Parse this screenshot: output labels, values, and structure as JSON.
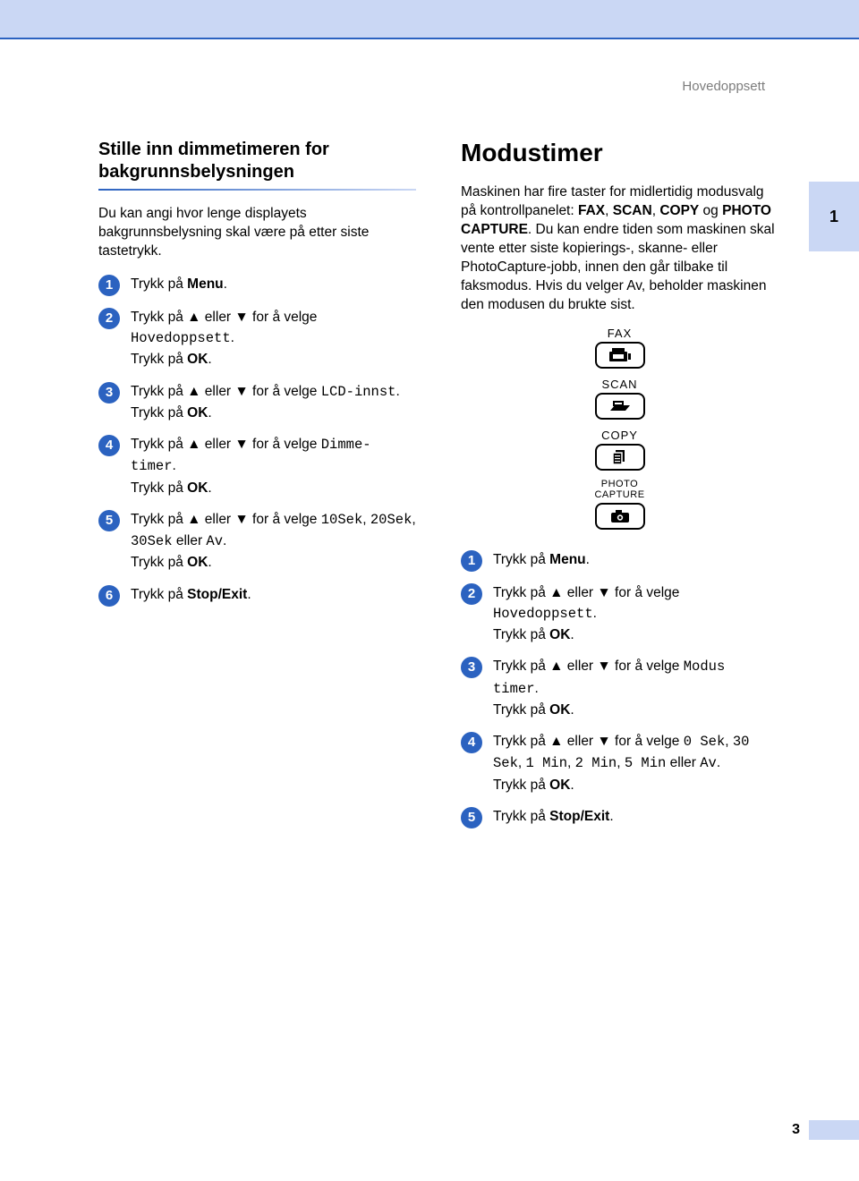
{
  "header": {
    "section": "Hovedoppsett"
  },
  "thumb": {
    "label": "1"
  },
  "page_number": "3",
  "colors": {
    "band": "#cad7f4",
    "accent": "#2b62c0",
    "header_text": "#7d7d7d"
  },
  "left": {
    "title": "Stille inn dimmetimeren for bakgrunnsbelysningen",
    "intro": "Du kan angi hvor lenge displayets bakgrunnsbelysning skal være på etter siste tastetrykk.",
    "steps": [
      {
        "n": "1",
        "html": "Trykk på <b>Menu</b>."
      },
      {
        "n": "2",
        "html": "Trykk på ▲ eller ▼ for å velge <span class=\"mono\">Hovedoppsett</span>.<br>Trykk på <b>OK</b>."
      },
      {
        "n": "3",
        "html": "Trykk på ▲ eller ▼ for å velge <span class=\"mono\">LCD-innst</span>.<br>Trykk på <b>OK</b>."
      },
      {
        "n": "4",
        "html": "Trykk på ▲ eller ▼ for å velge <span class=\"mono\">Dimme-timer</span>.<br>Trykk på <b>OK</b>."
      },
      {
        "n": "5",
        "html": "Trykk på ▲ eller ▼ for å velge <span class=\"mono\">10Sek</span>, <span class=\"mono\">20Sek</span>, <span class=\"mono\">30Sek</span> eller <span class=\"mono\">Av</span>.<br>Trykk på <b>OK</b>."
      },
      {
        "n": "6",
        "html": "Trykk på <b>Stop/Exit</b>."
      }
    ]
  },
  "right": {
    "title": "Modustimer",
    "intro_html": "Maskinen har fire taster for midlertidig modusvalg på kontrollpanelet: <b>FAX</b>, <b>SCAN</b>, <b>COPY</b> og <b>PHOTO CAPTURE</b>. Du kan endre tiden som maskinen skal vente etter siste kopierings-, skanne- eller PhotoCapture-jobb, innen den går tilbake til faksmodus. Hvis du velger <span class=\"mono\">Av</span>, beholder maskinen den modusen du brukte sist.",
    "keypad": [
      {
        "label": "FAX",
        "icon": "fax"
      },
      {
        "label": "SCAN",
        "icon": "scan"
      },
      {
        "label": "COPY",
        "icon": "copy"
      },
      {
        "label": "PHOTO\nCAPTURE",
        "icon": "camera"
      }
    ],
    "steps": [
      {
        "n": "1",
        "html": "Trykk på <b>Menu</b>."
      },
      {
        "n": "2",
        "html": "Trykk på ▲ eller ▼ for å velge <span class=\"mono\">Hovedoppsett</span>.<br>Trykk på <b>OK</b>."
      },
      {
        "n": "3",
        "html": "Trykk på ▲ eller ▼ for å velge <span class=\"mono\">Modus timer</span>.<br>Trykk på <b>OK</b>."
      },
      {
        "n": "4",
        "html": "Trykk på ▲ eller ▼ for å velge <span class=\"mono\">0 Sek</span>, <span class=\"mono\">30 Sek</span>, <span class=\"mono\">1 Min</span>, <span class=\"mono\">2 Min</span>, <span class=\"mono\">5 Min</span> eller <span class=\"mono\">Av</span>.<br>Trykk på <b>OK</b>."
      },
      {
        "n": "5",
        "html": "Trykk på <b>Stop/Exit</b>."
      }
    ]
  }
}
